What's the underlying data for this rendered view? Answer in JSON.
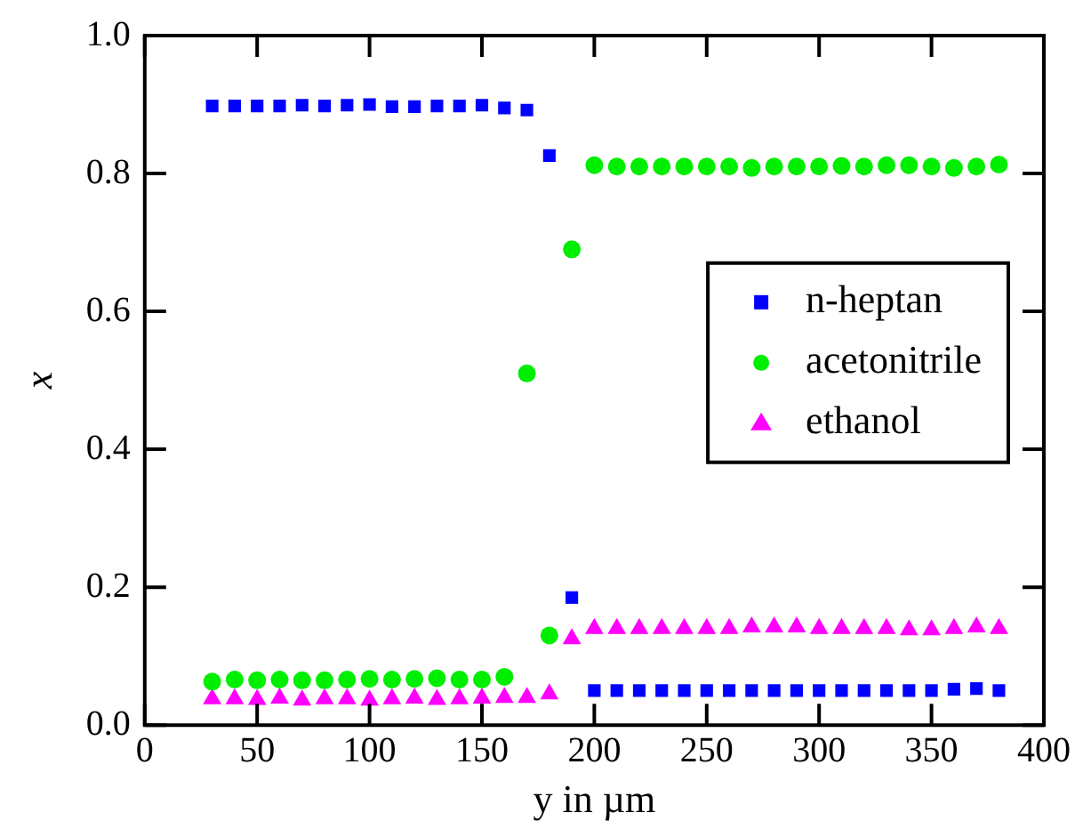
{
  "chart_data": {
    "type": "scatter",
    "xlabel": "y in µm",
    "ylabel": "x",
    "x": [
      30,
      40,
      50,
      60,
      70,
      80,
      90,
      100,
      110,
      120,
      130,
      140,
      150,
      160,
      170,
      180,
      190,
      200,
      210,
      220,
      230,
      240,
      250,
      260,
      270,
      280,
      290,
      300,
      310,
      320,
      330,
      340,
      350,
      360,
      370,
      380
    ],
    "series": [
      {
        "name": "n-heptan",
        "color": "#0000ff",
        "marker": "square",
        "values": [
          0.898,
          0.898,
          0.898,
          0.898,
          0.899,
          0.898,
          0.899,
          0.9,
          0.897,
          0.897,
          0.898,
          0.898,
          0.899,
          0.895,
          0.892,
          0.826,
          0.185,
          0.05,
          0.05,
          0.05,
          0.05,
          0.05,
          0.05,
          0.05,
          0.05,
          0.05,
          0.05,
          0.05,
          0.05,
          0.05,
          0.05,
          0.05,
          0.05,
          0.052,
          0.053,
          0.05
        ]
      },
      {
        "name": "acetonitrile",
        "color": "#00ee00",
        "marker": "circle",
        "values": [
          0.063,
          0.066,
          0.065,
          0.066,
          0.065,
          0.065,
          0.066,
          0.067,
          0.066,
          0.067,
          0.068,
          0.066,
          0.066,
          0.07,
          0.51,
          0.13,
          0.69,
          0.812,
          0.81,
          0.81,
          0.81,
          0.81,
          0.81,
          0.81,
          0.808,
          0.81,
          0.81,
          0.81,
          0.811,
          0.81,
          0.812,
          0.812,
          0.81,
          0.808,
          0.81,
          0.813
        ]
      },
      {
        "name": "ethanol",
        "color": "#ff00ff",
        "marker": "triangle",
        "values": [
          0.038,
          0.038,
          0.037,
          0.039,
          0.036,
          0.038,
          0.038,
          0.036,
          0.038,
          0.039,
          0.037,
          0.038,
          0.039,
          0.04,
          0.04,
          0.045,
          0.125,
          0.14,
          0.14,
          0.14,
          0.14,
          0.14,
          0.14,
          0.14,
          0.142,
          0.142,
          0.142,
          0.14,
          0.14,
          0.14,
          0.14,
          0.138,
          0.138,
          0.14,
          0.142,
          0.14
        ]
      }
    ],
    "xlim": [
      0,
      400
    ],
    "xticks": [
      0,
      50,
      100,
      150,
      200,
      250,
      300,
      350,
      400
    ],
    "ylim": [
      0,
      1
    ],
    "yticks": [
      {
        "value": 0,
        "label": "0.0"
      },
      {
        "value": 0.2,
        "label": "0.2"
      },
      {
        "value": 0.4,
        "label": "0.4"
      },
      {
        "value": 0.6,
        "label": "0.6"
      },
      {
        "value": 0.8,
        "label": "0.8"
      },
      {
        "value": 1,
        "label": "1.0"
      }
    ],
    "grid": false,
    "legend": "right"
  }
}
